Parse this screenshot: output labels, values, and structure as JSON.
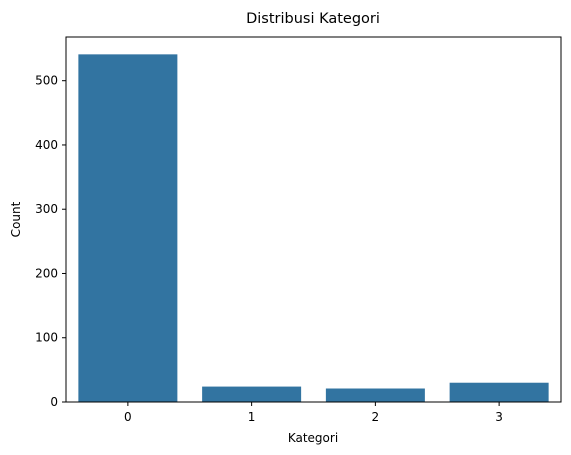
{
  "chart_data": {
    "type": "bar",
    "title": "Distribusi Kategori",
    "xlabel": "Kategori",
    "ylabel": "Count",
    "categories": [
      "0",
      "1",
      "2",
      "3"
    ],
    "values": [
      541,
      24,
      21,
      30
    ],
    "ylim": [
      0,
      568
    ],
    "yticks": [
      0,
      100,
      200,
      300,
      400,
      500
    ],
    "bar_color": "#3274a1",
    "grid": false,
    "legend": "none"
  }
}
